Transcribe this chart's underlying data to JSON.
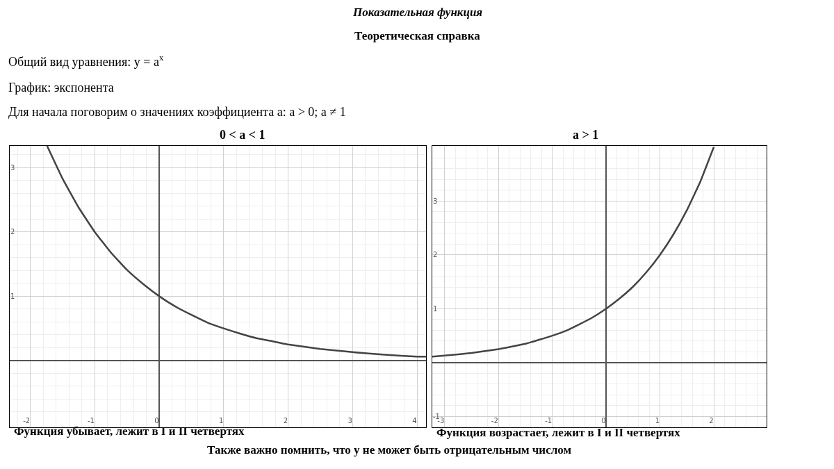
{
  "chart_data": [
    {
      "type": "line",
      "title": "0 < a < 1",
      "x": [
        -1.74,
        -1.5,
        -1.25,
        -1,
        -0.75,
        -0.5,
        -0.25,
        0,
        0.25,
        0.5,
        0.75,
        1,
        1.25,
        1.5,
        1.75,
        2,
        2.5,
        3,
        3.5,
        4,
        4.14
      ],
      "series": [
        {
          "color": "#444444",
          "values": [
            3.34,
            2.83,
            2.38,
            2,
            1.68,
            1.41,
            1.19,
            1,
            0.84,
            0.71,
            0.59,
            0.5,
            0.42,
            0.35,
            0.3,
            0.25,
            0.18,
            0.13,
            0.09,
            0.06,
            0.06
          ]
        }
      ],
      "xlim": [
        -2.32,
        4.14
      ],
      "ylim": [
        -1.04,
        3.34
      ],
      "xticks": [
        -2,
        -1,
        0,
        1,
        2,
        3,
        4
      ],
      "yticks": [
        1,
        2,
        3
      ],
      "grid": true,
      "marker": "none",
      "line_style": "solid",
      "annotations": [
        "Показательная функция",
        "Теоретическая справка",
        "Общий вид уравнения: y = a$^{x}$",
        "График: экспонента",
        "Для начала поговорим о значениях коэффициента a: a > 0; a ≠ 1",
        "Функция убывает, лежит в I и II четвертях"
      ]
    },
    {
      "type": "line",
      "title": "a > 1",
      "x": [
        -3.23,
        -3,
        -2.5,
        -2,
        -1.5,
        -1,
        -0.75,
        -0.5,
        -0.25,
        0,
        0.25,
        0.5,
        0.75,
        1,
        1.25,
        1.5,
        1.75,
        2
      ],
      "series": [
        {
          "color": "#444444",
          "values": [
            0.11,
            0.13,
            0.18,
            0.25,
            0.35,
            0.5,
            0.59,
            0.71,
            0.84,
            1,
            1.19,
            1.41,
            1.68,
            2,
            2.38,
            2.83,
            3.36,
            4
          ]
        }
      ],
      "xlim": [
        -3.23,
        2.98
      ],
      "ylim": [
        -1.2,
        4.02
      ],
      "xticks": [
        -3,
        -2,
        -1,
        0,
        1,
        2
      ],
      "yticks": [
        -1,
        1,
        2,
        3
      ],
      "grid": true,
      "marker": "none",
      "line_style": "solid",
      "annotations": [
        "Функция возрастает, лежит в I и II четвертях",
        "Также важно помнить, что y не может быть отрицательным числом"
      ]
    }
  ]
}
